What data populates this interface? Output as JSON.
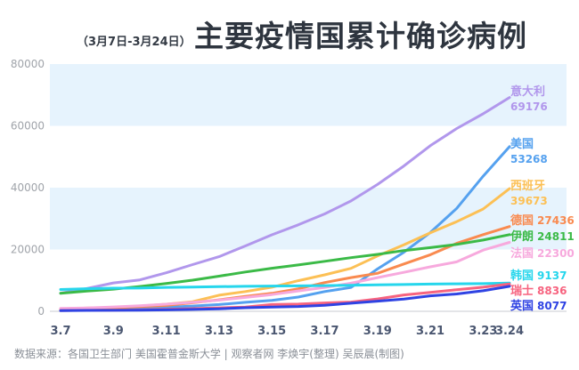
{
  "subtitle": "（3月7日-3月24日）",
  "title": "主要疫情国累计确诊病例",
  "source": "数据来源：各国卫生部门 美国霍普金斯大学  |  观察者网 李焕宇(整理)  吴辰晨(制图)",
  "chart_data": {
    "type": "line",
    "title": "主要疫情国累计确诊病例",
    "xlabel": "",
    "ylabel": "",
    "ylim": [
      0,
      80000
    ],
    "yticks": [
      "0",
      "20000",
      "40000",
      "60000",
      "80000"
    ],
    "xticks": [
      "3.7",
      "3.9",
      "3.11",
      "3.13",
      "3.15",
      "3.17",
      "3.19",
      "3.21",
      "3.23",
      "3.24"
    ],
    "xtick_index": [
      0,
      2,
      4,
      6,
      8,
      10,
      12,
      14,
      16,
      17
    ],
    "x": [
      "3.7",
      "3.8",
      "3.9",
      "3.10",
      "3.11",
      "3.12",
      "3.13",
      "3.14",
      "3.15",
      "3.16",
      "3.17",
      "3.18",
      "3.19",
      "3.20",
      "3.21",
      "3.22",
      "3.23",
      "3.24"
    ],
    "series": [
      {
        "name": "意大利",
        "final": "69176",
        "color": "#b197ec",
        "values": [
          5883,
          7375,
          9172,
          10149,
          12462,
          15113,
          17660,
          21157,
          24747,
          27980,
          31506,
          35713,
          41035,
          47021,
          53578,
          59138,
          63927,
          69176
        ]
      },
      {
        "name": "美国",
        "final": "53268",
        "color": "#55a1ef",
        "values": [
          400,
          500,
          600,
          1000,
          1300,
          1700,
          2200,
          2900,
          3500,
          4600,
          6400,
          7700,
          13700,
          19100,
          25500,
          33300,
          43700,
          53268
        ]
      },
      {
        "name": "西班牙",
        "final": "39673",
        "color": "#fcc055",
        "values": [
          500,
          670,
          1070,
          1700,
          2300,
          3100,
          5200,
          6400,
          7800,
          9900,
          11800,
          13900,
          17900,
          21500,
          25400,
          29000,
          33100,
          39673
        ]
      },
      {
        "name": "德国",
        "final": "27436",
        "color": "#f98a4f",
        "values": [
          800,
          1040,
          1180,
          1560,
          1900,
          2750,
          3700,
          4800,
          5800,
          7270,
          9300,
          10900,
          12300,
          15300,
          18300,
          22000,
          24800,
          27436
        ]
      },
      {
        "name": "伊朗",
        "final": "24811",
        "color": "#3bba47",
        "values": [
          5823,
          6566,
          7161,
          8042,
          9000,
          10075,
          11364,
          12729,
          13938,
          14991,
          16169,
          17361,
          18407,
          19644,
          20610,
          21638,
          23049,
          24811
        ]
      },
      {
        "name": "法国",
        "final": "22300",
        "color": "#f7a9dd",
        "values": [
          950,
          1100,
          1400,
          1800,
          2300,
          2900,
          3600,
          4500,
          5400,
          6600,
          7700,
          9100,
          10900,
          12600,
          14400,
          16000,
          19800,
          22300
        ]
      },
      {
        "name": "韩国",
        "final": "9137",
        "color": "#26d6ec",
        "values": [
          7041,
          7314,
          7478,
          7513,
          7755,
          7869,
          7979,
          8086,
          8162,
          8236,
          8320,
          8413,
          8565,
          8652,
          8799,
          8897,
          8961,
          9137
        ]
      },
      {
        "name": "瑞士",
        "final": "8836",
        "color": "#f7637f",
        "values": [
          270,
          330,
          370,
          490,
          650,
          850,
          1130,
          1360,
          2200,
          2330,
          2700,
          3000,
          4000,
          5300,
          6100,
          7000,
          7800,
          8836
        ]
      },
      {
        "name": "英国",
        "final": "8077",
        "color": "#2f43e3",
        "values": [
          210,
          280,
          320,
          380,
          460,
          590,
          800,
          1140,
          1380,
          1540,
          1950,
          2630,
          3270,
          3980,
          5000,
          5600,
          6650,
          8077
        ]
      }
    ]
  }
}
